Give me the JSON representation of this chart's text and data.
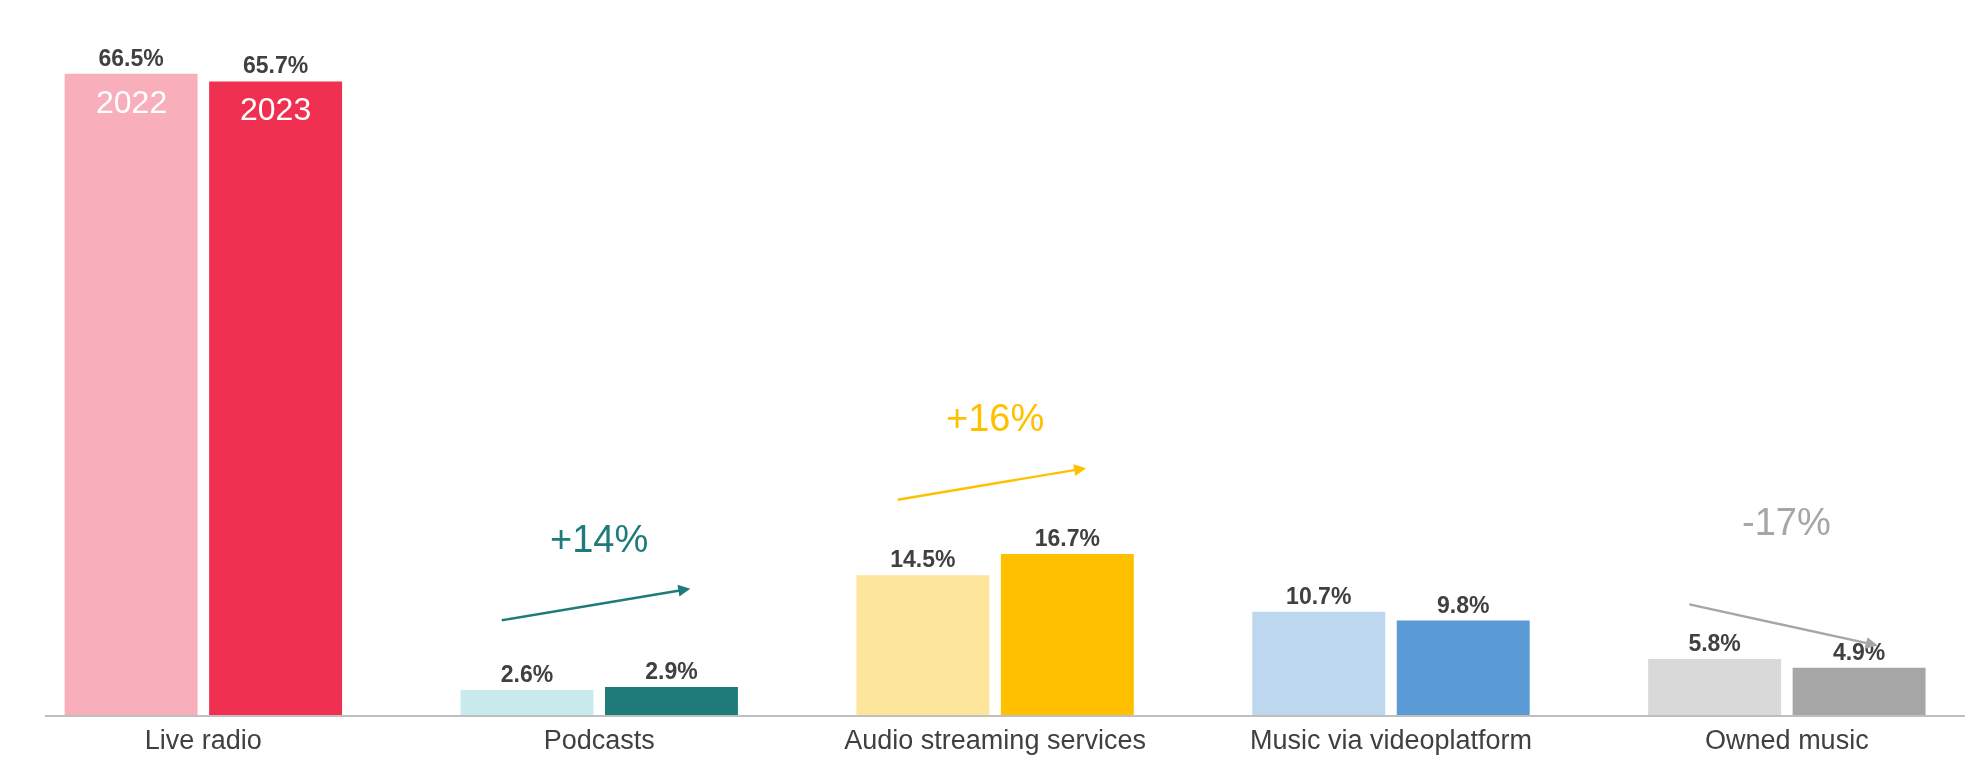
{
  "chart_data": {
    "type": "bar",
    "categories": [
      "Live radio",
      "Podcasts",
      "Audio streaming services",
      "Music via videoplatform",
      "Owned music"
    ],
    "series": [
      {
        "name": "2022",
        "colors": [
          "#f8afbb",
          "#c8eced",
          "#fde59b",
          "#bdd7ee",
          "#d9d9d9"
        ],
        "values": [
          66.5,
          2.6,
          14.5,
          10.7,
          5.8
        ],
        "value_labels": [
          "66.5%",
          "2.6%",
          "14.5%",
          "10.7%",
          "5.8%"
        ]
      },
      {
        "name": "2023",
        "colors": [
          "#f03050",
          "#1f7a7a",
          "#ffc000",
          "#5b9bd5",
          "#a6a6a6"
        ],
        "values": [
          65.7,
          2.9,
          16.7,
          9.8,
          4.9
        ],
        "value_labels": [
          "65.7%",
          "2.9%",
          "16.7%",
          "9.8%",
          "4.9%"
        ]
      }
    ],
    "annotations": [
      "+14%",
      "+16%",
      "-17%"
    ],
    "legend": false,
    "grid": false
  }
}
